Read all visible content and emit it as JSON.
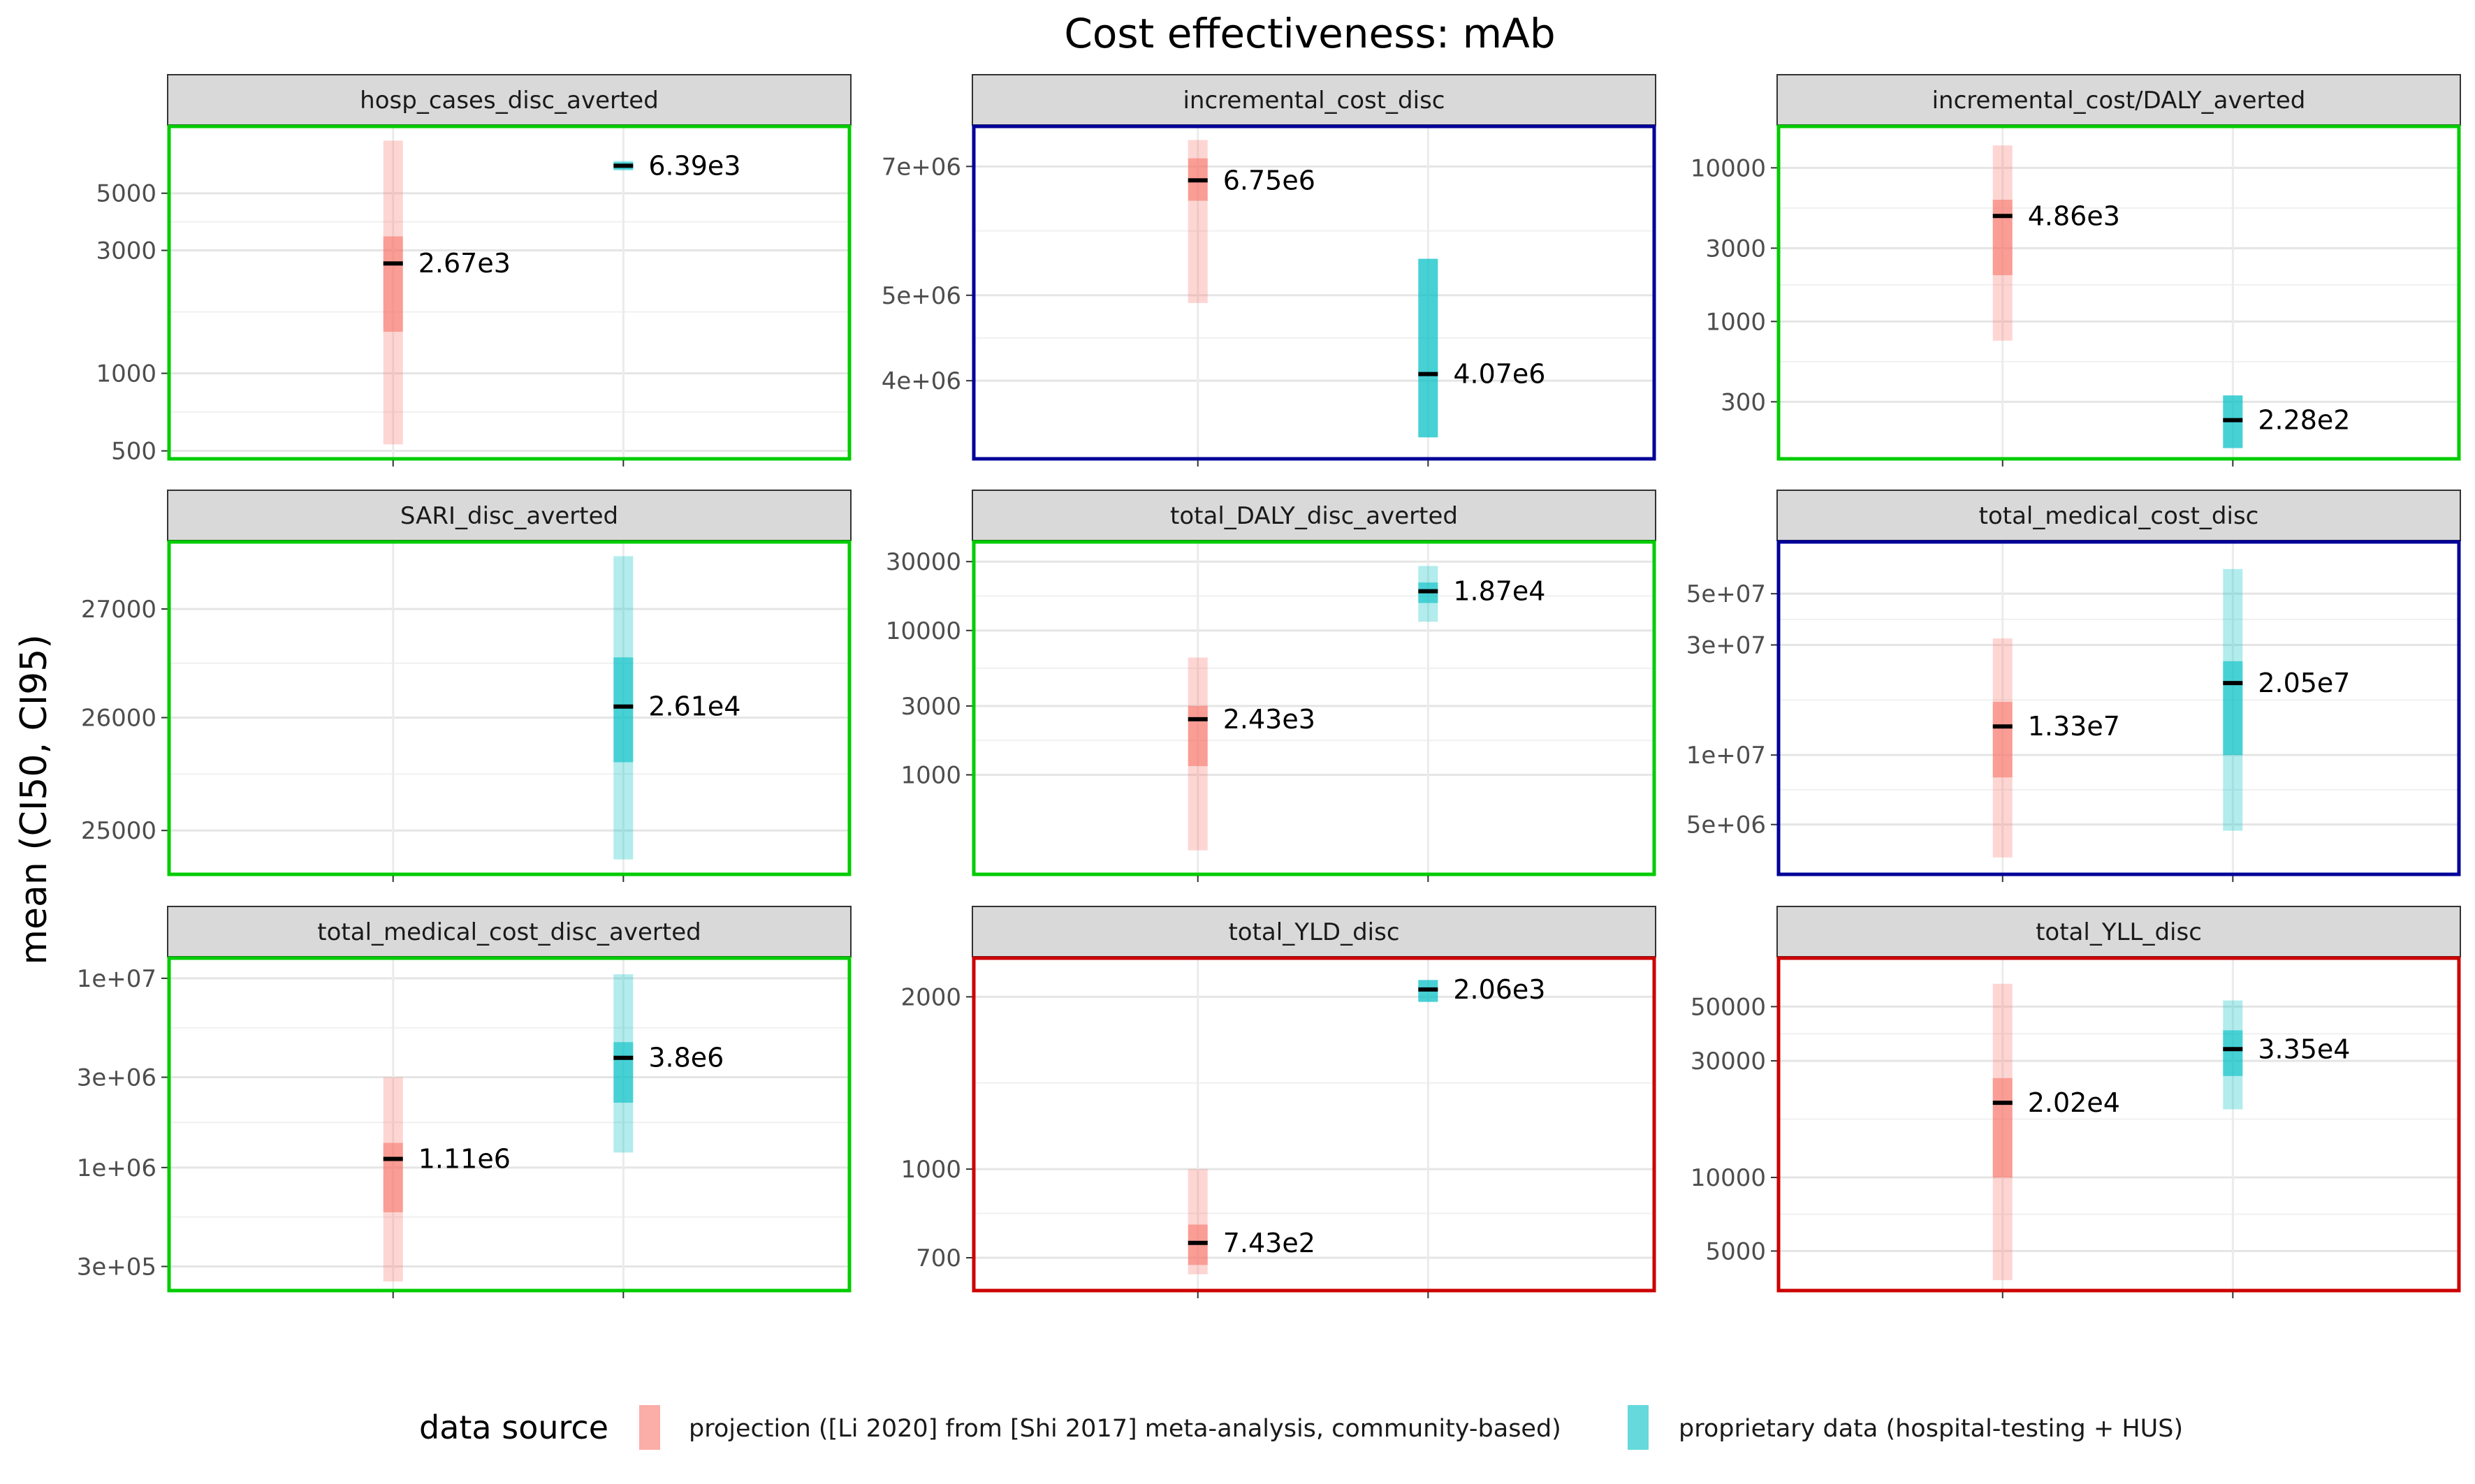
{
  "chart_data": {
    "type": "interval",
    "title": "Cost effectiveness: mAb",
    "ylabel": "mean (CI50, CI95)",
    "xlabel": "",
    "scale": "log10",
    "grid": true,
    "legend": {
      "title": "data source",
      "position": "bottom",
      "entries": [
        {
          "name": "projection ([Li 2020] from [Shi 2017] meta-analysis, community-based)",
          "color": "#F8766D"
        },
        {
          "name": "proprietary data (hospital-testing + HUS)",
          "color": "#00BFC4"
        }
      ]
    },
    "facets": [
      {
        "title": "hosp_cases_disc_averted",
        "border": "#00CC00",
        "ylim": [
          460,
          9200
        ],
        "ticks": [
          {
            "v": 500,
            "label": "500"
          },
          {
            "v": 1000,
            "label": "1000"
          },
          {
            "v": 3000,
            "label": "3000"
          },
          {
            "v": 5000,
            "label": "5000"
          }
        ],
        "series": [
          {
            "source": 0,
            "mean": 2670,
            "ci50": [
              1450,
              3400
            ],
            "ci95": [
              530,
              8000
            ],
            "label": "2.67e3"
          },
          {
            "source": 1,
            "mean": 6390,
            "ci50": [
              6180,
              6600
            ],
            "ci95": [
              6120,
              6680
            ],
            "label": "6.39e3"
          }
        ]
      },
      {
        "title": "incremental_cost_disc",
        "border": "#000099",
        "ylim": [
          3250000,
          7800000
        ],
        "ticks": [
          {
            "v": 4000000,
            "label": "4e+06"
          },
          {
            "v": 5000000,
            "label": "5e+06"
          },
          {
            "v": 7000000,
            "label": "7e+06"
          }
        ],
        "series": [
          {
            "source": 0,
            "mean": 6750000,
            "ci50": [
              6400000,
              7150000
            ],
            "ci95": [
              4900000,
              7500000
            ],
            "label": "6.75e6"
          },
          {
            "source": 1,
            "mean": 4070000,
            "ci50": [
              3450000,
              5500000
            ],
            "ci95": [
              3450000,
              5500000
            ],
            "label": "4.07e6"
          }
        ]
      },
      {
        "title": "incremental_cost/DALY_averted",
        "border": "#00CC00",
        "ylim": [
          125,
          19000
        ],
        "ticks": [
          {
            "v": 300,
            "label": "300"
          },
          {
            "v": 1000,
            "label": "1000"
          },
          {
            "v": 3000,
            "label": "3000"
          },
          {
            "v": 10000,
            "label": "10000"
          }
        ],
        "series": [
          {
            "source": 0,
            "mean": 4860,
            "ci50": [
              2000,
              6200
            ],
            "ci95": [
              750,
              14000
            ],
            "label": "4.86e3"
          },
          {
            "source": 1,
            "mean": 228,
            "ci50": [
              150,
              330
            ],
            "ci95": [
              150,
              330
            ],
            "label": "2.28e2"
          }
        ]
      },
      {
        "title": "SARI_disc_averted",
        "border": "#00CC00",
        "ylim": [
          24610,
          27650
        ],
        "ticks": [
          {
            "v": 25000,
            "label": "25000"
          },
          {
            "v": 26000,
            "label": "26000"
          },
          {
            "v": 27000,
            "label": "27000"
          }
        ],
        "series": [
          {
            "source": 1,
            "mean": 26100,
            "ci50": [
              25600,
              26550
            ],
            "ci95": [
              24750,
              27500
            ],
            "label": "2.61e4"
          }
        ]
      },
      {
        "title": "total_DALY_disc_averted",
        "border": "#00CC00",
        "ylim": [
          200,
          42000
        ],
        "ticks": [
          {
            "v": 1000,
            "label": "1000"
          },
          {
            "v": 3000,
            "label": "3000"
          },
          {
            "v": 10000,
            "label": "10000"
          },
          {
            "v": 30000,
            "label": "30000"
          }
        ],
        "series": [
          {
            "source": 0,
            "mean": 2430,
            "ci50": [
              1150,
              3000
            ],
            "ci95": [
              300,
              6500
            ],
            "label": "2.43e3"
          },
          {
            "source": 1,
            "mean": 18700,
            "ci50": [
              15500,
              21500
            ],
            "ci95": [
              11500,
              28000
            ],
            "label": "1.87e4"
          }
        ]
      },
      {
        "title": "total_medical_cost_disc",
        "border": "#000099",
        "ylim": [
          3000000,
          85000000
        ],
        "ticks": [
          {
            "v": 5000000,
            "label": "5e+06"
          },
          {
            "v": 10000000,
            "label": "1e+07"
          },
          {
            "v": 30000000,
            "label": "3e+07"
          },
          {
            "v": 50000000,
            "label": "5e+07"
          }
        ],
        "series": [
          {
            "source": 0,
            "mean": 13300000,
            "ci50": [
              8000000,
              17000000
            ],
            "ci95": [
              3600000,
              32000000
            ],
            "label": "1.33e7"
          },
          {
            "source": 1,
            "mean": 20500000,
            "ci50": [
              10000000,
              25500000
            ],
            "ci95": [
              4700000,
              64000000
            ],
            "label": "2.05e7"
          }
        ]
      },
      {
        "title": "total_medical_cost_disc_averted",
        "border": "#00CC00",
        "ylim": [
          220000,
          13000000
        ],
        "ticks": [
          {
            "v": 300000,
            "label": "3e+05"
          },
          {
            "v": 1000000,
            "label": "1e+06"
          },
          {
            "v": 3000000,
            "label": "3e+06"
          },
          {
            "v": 10000000,
            "label": "1e+07"
          }
        ],
        "series": [
          {
            "source": 0,
            "mean": 1110000,
            "ci50": [
              580000,
              1350000
            ],
            "ci95": [
              250000,
              3000000
            ],
            "label": "1.11e6"
          },
          {
            "source": 1,
            "mean": 3800000,
            "ci50": [
              2200000,
              4600000
            ],
            "ci95": [
              1200000,
              10500000
            ],
            "label": "3.8e6"
          }
        ]
      },
      {
        "title": "total_YLD_disc",
        "border": "#CC0000",
        "ylim": [
          610,
          2350
        ],
        "ticks": [
          {
            "v": 700,
            "label": "700"
          },
          {
            "v": 1000,
            "label": "1000"
          },
          {
            "v": 2000,
            "label": "2000"
          }
        ],
        "series": [
          {
            "source": 0,
            "mean": 743,
            "ci50": [
              680,
              800
            ],
            "ci95": [
              655,
              1000
            ],
            "label": "7.43e2"
          },
          {
            "source": 1,
            "mean": 2060,
            "ci50": [
              1960,
              2140
            ],
            "ci95": [
              1960,
              2140
            ],
            "label": "2.06e3"
          }
        ]
      },
      {
        "title": "total_YLL_disc",
        "border": "#CC0000",
        "ylim": [
          3400,
          80000
        ],
        "ticks": [
          {
            "v": 5000,
            "label": "5000"
          },
          {
            "v": 10000,
            "label": "10000"
          },
          {
            "v": 30000,
            "label": "30000"
          },
          {
            "v": 50000,
            "label": "50000"
          }
        ],
        "series": [
          {
            "source": 0,
            "mean": 20200,
            "ci50": [
              10000,
              25500
            ],
            "ci95": [
              3800,
              62000
            ],
            "label": "2.02e4"
          },
          {
            "source": 1,
            "mean": 33500,
            "ci50": [
              26000,
              40000
            ],
            "ci95": [
              19000,
              53000
            ],
            "label": "3.35e4"
          }
        ]
      }
    ]
  }
}
